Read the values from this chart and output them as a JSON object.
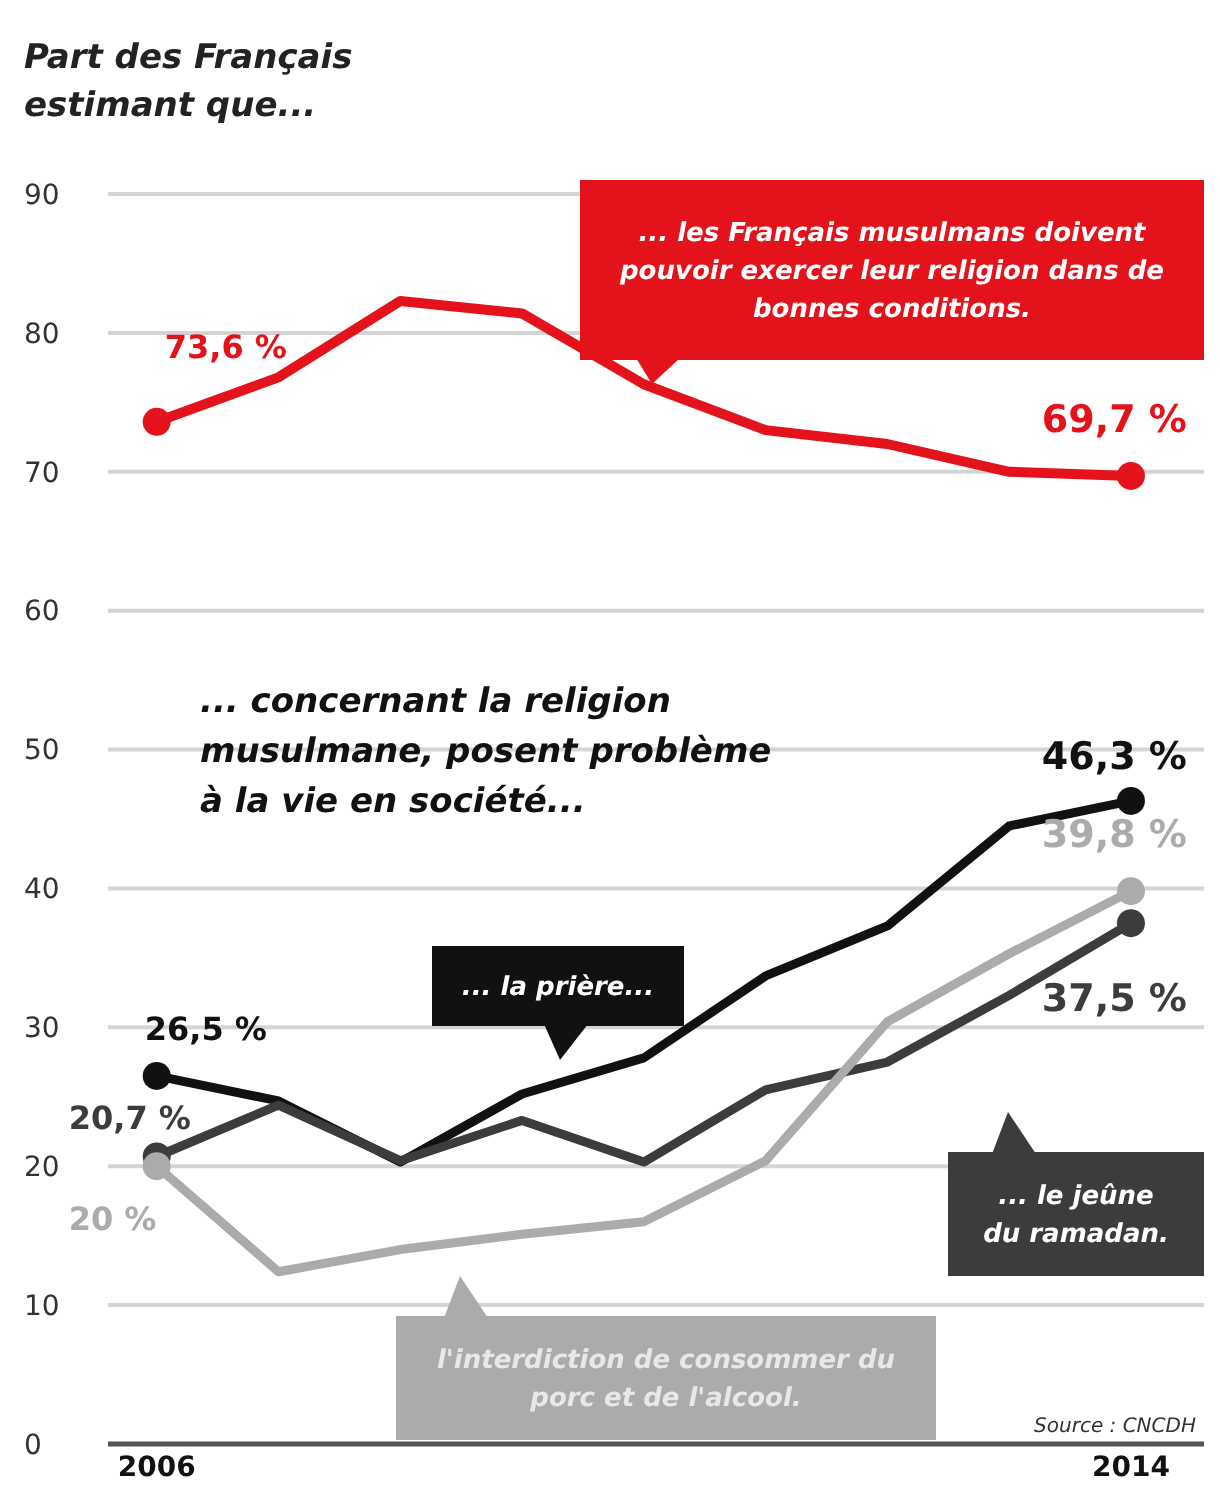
{
  "chart_data": {
    "type": "line",
    "title": "Part des Français estimant que...",
    "x": [
      2006,
      2007,
      2008,
      2009,
      2010,
      2011,
      2012,
      2013,
      2014
    ],
    "xlim": [
      2005.6,
      2014.6
    ],
    "xticks": [
      2006,
      2014
    ],
    "legend": "bottom right",
    "ylim": [
      0,
      90
    ],
    "yticks": [
      0,
      10,
      20,
      30,
      40,
      50,
      60,
      70,
      80,
      90
    ],
    "grid": "y",
    "series": [
      {
        "name": "... les Français musulmans doivent pouvoir exercer leur religion dans de bonnes conditions.",
        "color": "#e3121b",
        "values": [
          73.6,
          76.8,
          82.3,
          81.4,
          76.3,
          73,
          72,
          70,
          69.7
        ],
        "value_labels": [
          "73,6 %",
          null,
          null,
          null,
          null,
          null,
          null,
          null,
          "69,7 %"
        ]
      },
      {
        "name": "... la prière...",
        "color": "#111111",
        "values": [
          26.5,
          24.7,
          20.3,
          25.2,
          27.8,
          33.7,
          37.3,
          44.5,
          46.3
        ],
        "value_labels": [
          "26,5 %",
          null,
          null,
          null,
          null,
          null,
          null,
          null,
          "46,3 %"
        ]
      },
      {
        "name": "... le jeûne du ramadan.",
        "color": "#3c3c3c",
        "values": [
          20.7,
          24.4,
          20.4,
          23.3,
          20.3,
          25.5,
          27.5,
          32.3,
          37.5
        ],
        "value_labels": [
          "20,7 %",
          null,
          null,
          null,
          null,
          null,
          null,
          null,
          "37,5 %"
        ]
      },
      {
        "name": "l'interdiction de consommer du porc et de l'alcool.",
        "color": "#ababab",
        "values": [
          20,
          12.4,
          14,
          15.1,
          16,
          20.4,
          30.4,
          35.3,
          39.8
        ],
        "value_labels": [
          "20 %",
          null,
          null,
          null,
          null,
          null,
          null,
          null,
          "39,8 %"
        ]
      }
    ],
    "annotations": [
      "... concernant la religion musulmane, posent problème à la vie en société...",
      "Source : CNCDH"
    ]
  }
}
